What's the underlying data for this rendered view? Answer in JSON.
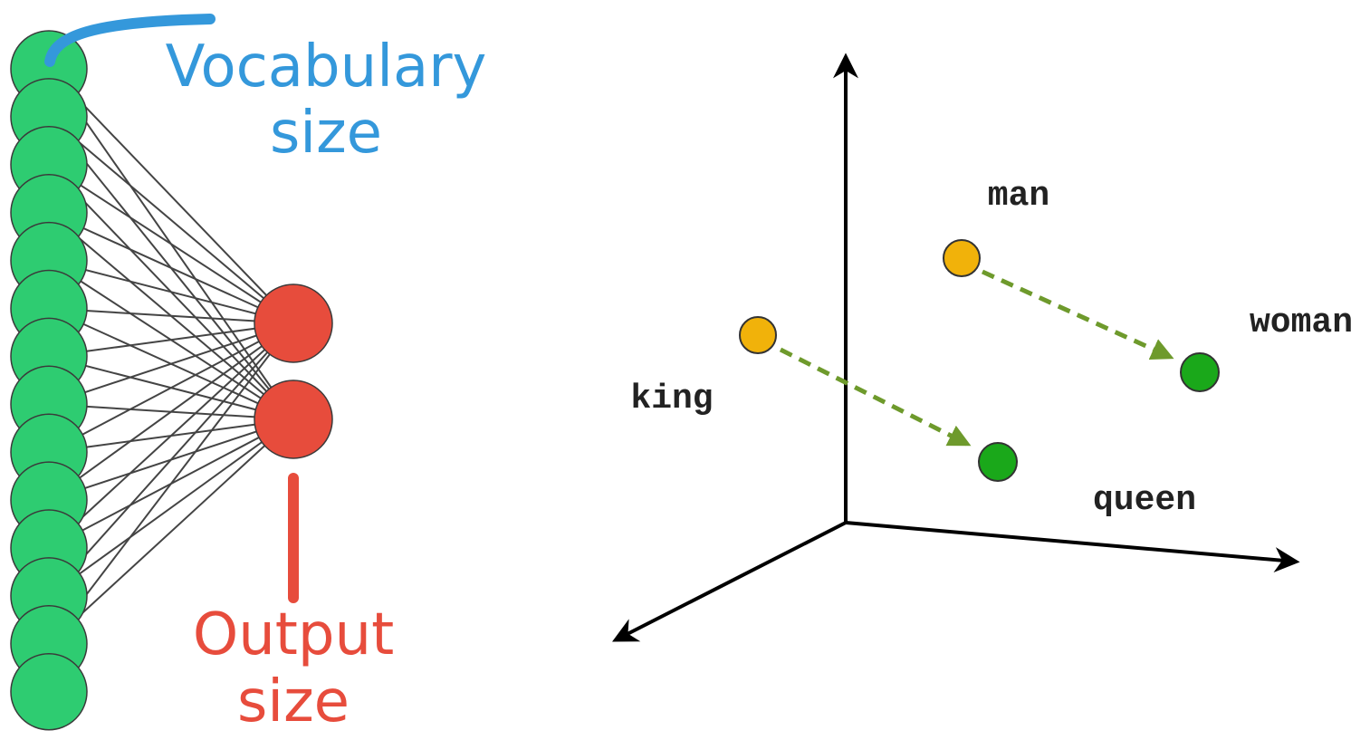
{
  "neural_network": {
    "input_layer": {
      "node_count": 14,
      "node_color": "#2ecc71"
    },
    "output_layer": {
      "node_count": 2,
      "node_color": "#e74c3c"
    },
    "edge_color": "#444444",
    "vocabulary_label": {
      "line1": "Vocabulary",
      "line2": "size",
      "color": "#3498db"
    },
    "output_label": {
      "line1": "Output",
      "line2": "size",
      "color": "#e74c3c"
    }
  },
  "embedding_space": {
    "words": [
      {
        "id": "man",
        "label": "man",
        "color": "#f1b20a"
      },
      {
        "id": "woman",
        "label": "woman",
        "color": "#1aa81a"
      },
      {
        "id": "king",
        "label": "king",
        "color": "#f1b20a"
      },
      {
        "id": "queen",
        "label": "queen",
        "color": "#1aa81a"
      }
    ],
    "arrows": [
      {
        "from": "man",
        "to": "woman"
      },
      {
        "from": "king",
        "to": "queen"
      }
    ],
    "arrow_color": "#6e9a2c",
    "axis_color": "#000000"
  }
}
